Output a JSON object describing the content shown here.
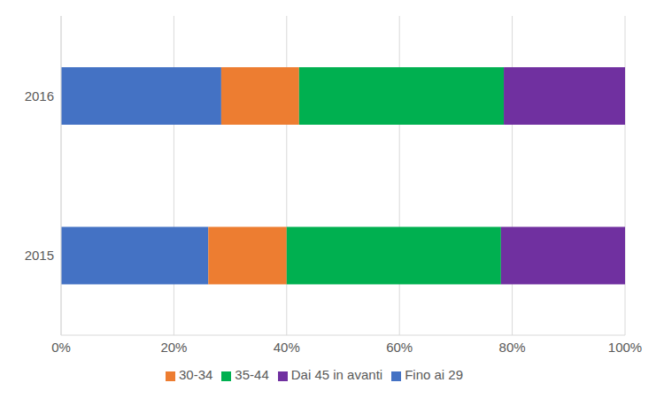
{
  "chart_data": {
    "type": "bar",
    "orientation": "horizontal",
    "stacked": true,
    "grid": true,
    "legend": "bottom",
    "categories": [
      "2015",
      "2016"
    ],
    "series": [
      {
        "name": "Fino ai 29",
        "color": "#4472c4",
        "values": [
          26.1,
          28.4
        ]
      },
      {
        "name": "30-34",
        "color": "#ed7d31",
        "values": [
          13.9,
          13.8
        ]
      },
      {
        "name": "35-44",
        "color": "#00b050",
        "values": [
          38.0,
          36.3
        ]
      },
      {
        "name": "Dai 45 in avanti",
        "color": "#7030a0",
        "values": [
          22.0,
          21.5
        ]
      }
    ],
    "xlim": [
      0,
      100
    ],
    "xticks": [
      {
        "value": 0,
        "label": "0%"
      },
      {
        "value": 20,
        "label": "20%"
      },
      {
        "value": 40,
        "label": "40%"
      },
      {
        "value": 60,
        "label": "60%"
      },
      {
        "value": 80,
        "label": "80%"
      },
      {
        "value": 100,
        "label": "100%"
      }
    ]
  }
}
